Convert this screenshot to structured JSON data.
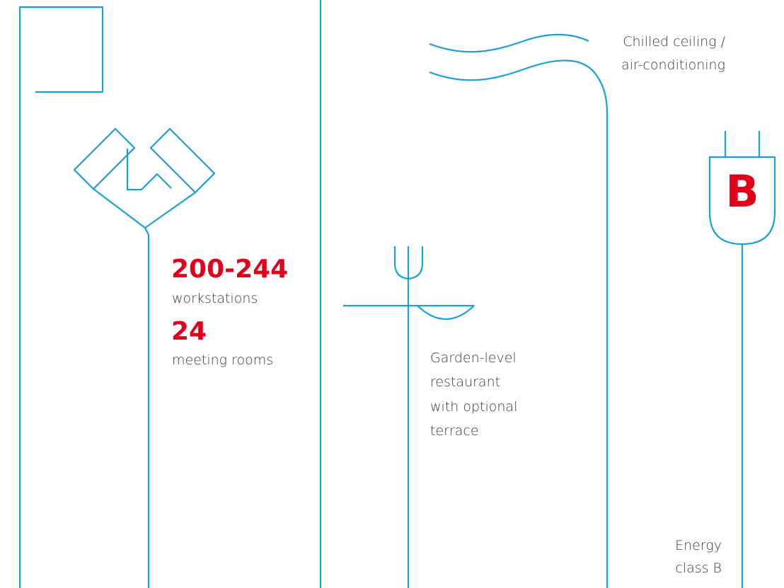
{
  "workspace": {
    "workstations_count": "200-244",
    "workstations_label": "workstations",
    "meeting_rooms_count": "24",
    "meeting_rooms_label": "meeting rooms"
  },
  "restaurant": {
    "lines": [
      "Garden-level",
      "restaurant",
      "with optional",
      "terrace"
    ]
  },
  "cooling": {
    "lines": [
      "Chilled ceiling /",
      "air-conditioning"
    ]
  },
  "energy": {
    "badge": "B",
    "lines": [
      "Energy",
      "class B"
    ]
  }
}
